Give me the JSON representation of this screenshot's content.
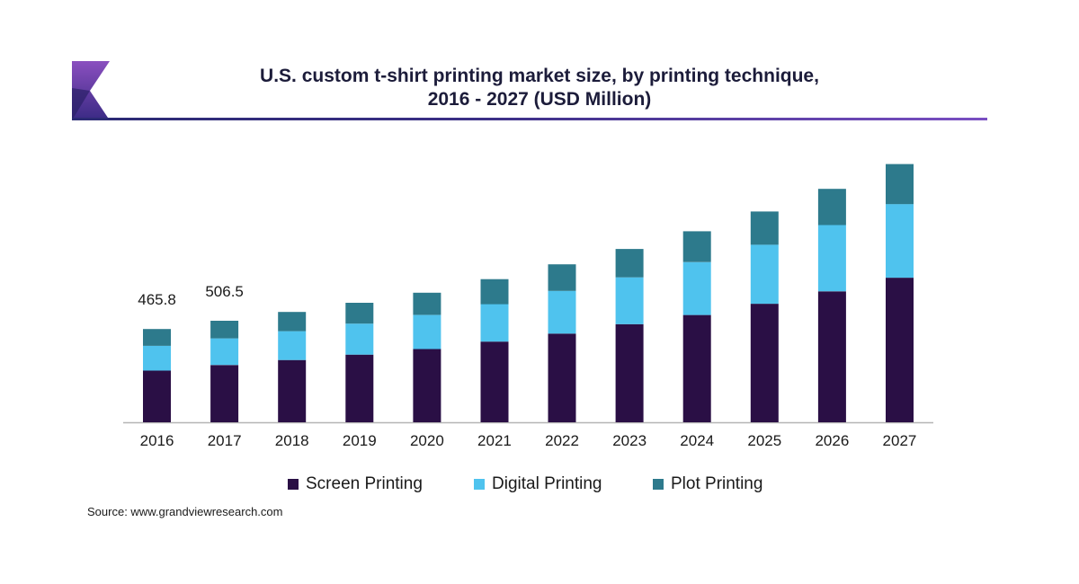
{
  "header": {
    "title_line1": "U.S. custom t-shirt printing market size, by printing technique,",
    "title_line2": "2016 - 2027 (USD Million)"
  },
  "source": "Source: www.grandviewresearch.com",
  "colors": {
    "screen": "#2a0f45",
    "digital": "#4fc3ee",
    "plot": "#2d7a8c",
    "axis": "#b5b5b5",
    "title_rule": "#3b2f86"
  },
  "chart_data": {
    "type": "bar",
    "stacked": true,
    "title": "U.S. custom t-shirt printing market size, by printing technique, 2016 - 2027 (USD Million)",
    "xlabel": "",
    "ylabel": "",
    "ylim": [
      0,
      1300
    ],
    "categories": [
      "2016",
      "2017",
      "2018",
      "2019",
      "2020",
      "2021",
      "2022",
      "2023",
      "2024",
      "2025",
      "2026",
      "2027"
    ],
    "series": [
      {
        "name": "Screen Printing",
        "values": [
          258,
          286,
          311,
          338,
          366,
          403,
          443,
          490,
          536,
          592,
          654,
          722
        ]
      },
      {
        "name": "Digital Printing",
        "values": [
          124,
          133,
          144,
          155,
          170,
          187,
          213,
          234,
          264,
          295,
          331,
          368
        ]
      },
      {
        "name": "Plot Printing",
        "values": [
          84,
          88,
          96,
          104,
          111,
          125,
          133,
          142,
          154,
          166,
          181,
          200
        ]
      }
    ],
    "data_labels": [
      {
        "category": "2016",
        "text": "465.8"
      },
      {
        "category": "2017",
        "text": "506.5"
      }
    ],
    "legend": {
      "position": "bottom"
    },
    "grid": false
  }
}
